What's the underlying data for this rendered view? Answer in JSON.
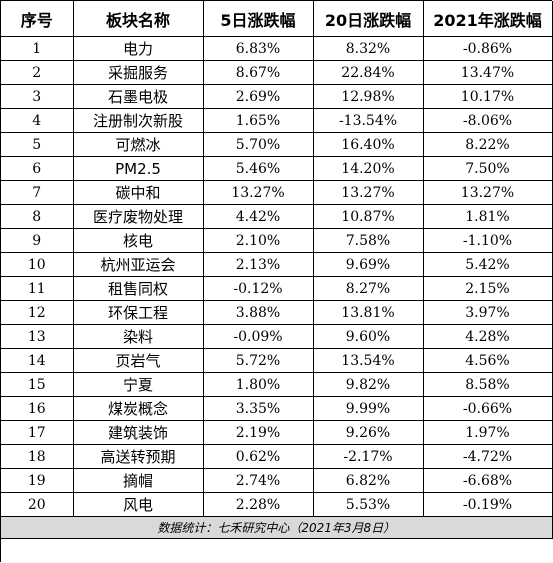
{
  "headers": [
    "序号",
    "板块名称",
    "5日涨跌幅",
    "20日涨跌幅",
    "2021年涨跌幅"
  ],
  "rows": [
    [
      "1",
      "电力",
      "6.83%",
      "8.32%",
      "-0.86%"
    ],
    [
      "2",
      "采掘服务",
      "8.67%",
      "22.84%",
      "13.47%"
    ],
    [
      "3",
      "石墨电极",
      "2.69%",
      "12.98%",
      "10.17%"
    ],
    [
      "4",
      "注册制次新股",
      "1.65%",
      "-13.54%",
      "-8.06%"
    ],
    [
      "5",
      "可燃冰",
      "5.70%",
      "16.40%",
      "8.22%"
    ],
    [
      "6",
      "PM2.5",
      "5.46%",
      "14.20%",
      "7.50%"
    ],
    [
      "7",
      "碳中和",
      "13.27%",
      "13.27%",
      "13.27%"
    ],
    [
      "8",
      "医疗废物处理",
      "4.42%",
      "10.87%",
      "1.81%"
    ],
    [
      "9",
      "核电",
      "2.10%",
      "7.58%",
      "-1.10%"
    ],
    [
      "10",
      "杭州亚运会",
      "2.13%",
      "9.69%",
      "5.42%"
    ],
    [
      "11",
      "租售同权",
      "-0.12%",
      "8.27%",
      "2.15%"
    ],
    [
      "12",
      "环保工程",
      "3.88%",
      "13.81%",
      "3.97%"
    ],
    [
      "13",
      "染料",
      "-0.09%",
      "9.60%",
      "4.28%"
    ],
    [
      "14",
      "页岩气",
      "5.72%",
      "13.54%",
      "4.56%"
    ],
    [
      "15",
      "宁夏",
      "1.80%",
      "9.82%",
      "8.58%"
    ],
    [
      "16",
      "煤炭概念",
      "3.35%",
      "9.99%",
      "-0.66%"
    ],
    [
      "17",
      "建筑装饰",
      "2.19%",
      "9.26%",
      "1.97%"
    ],
    [
      "18",
      "高送转预期",
      "0.62%",
      "-2.17%",
      "-4.72%"
    ],
    [
      "19",
      "摘帽",
      "2.74%",
      "6.82%",
      "-6.68%"
    ],
    [
      "20",
      "风电",
      "2.28%",
      "5.53%",
      "-0.19%"
    ]
  ],
  "footer": "数据统计：七禾研究中心（2021年3月8日）",
  "colors": {
    "border": "#000000",
    "footer_bg": "#d9d9d9",
    "text": "#000000"
  }
}
